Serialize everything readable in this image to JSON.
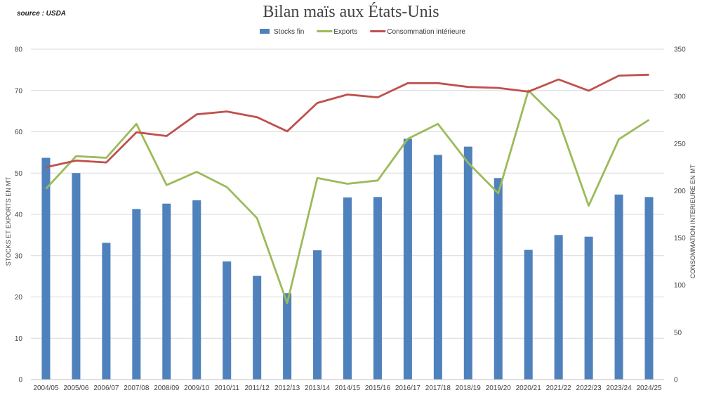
{
  "source_label": "source : USDA",
  "chart_data": {
    "type": "bar",
    "title": "Bilan maïs aux États-Unis",
    "ylabel_left": "STOCKS ET EXPORTS EN MT",
    "ylabel_right": "CONSOMMATION INTERIEURE EN MT",
    "ylim_left": [
      0,
      80
    ],
    "ylim_right": [
      0,
      350
    ],
    "yticks_left": [
      0,
      10,
      20,
      30,
      40,
      50,
      60,
      70,
      80
    ],
    "yticks_right": [
      0,
      50,
      100,
      150,
      200,
      250,
      300,
      350
    ],
    "grid": true,
    "legend_position": "top-center",
    "categories": [
      "2004/05",
      "2005/06",
      "2006/07",
      "2007/08",
      "2008/09",
      "2009/10",
      "2010/11",
      "2011/12",
      "2012/13",
      "2013/14",
      "2014/15",
      "2015/16",
      "2016/17",
      "2017/18",
      "2018/19",
      "2019/20",
      "2020/21",
      "2021/22",
      "2022/23",
      "2023/24",
      "2024/25"
    ],
    "series": [
      {
        "name": "Stocks fin",
        "type": "bar",
        "axis": "left",
        "color": "#4f81bd",
        "values": [
          53.7,
          50.0,
          33.1,
          41.3,
          42.6,
          43.4,
          28.6,
          25.1,
          20.9,
          31.3,
          44.1,
          44.2,
          58.3,
          54.4,
          56.4,
          48.8,
          31.4,
          35.0,
          34.6,
          44.8,
          44.2
        ]
      },
      {
        "name": "Exports",
        "type": "line",
        "axis": "left",
        "color": "#9bbb59",
        "values": [
          46.2,
          54.1,
          53.7,
          61.9,
          47.1,
          50.3,
          46.6,
          39.1,
          18.5,
          48.8,
          47.4,
          48.2,
          58.3,
          61.9,
          52.5,
          45.1,
          70.0,
          62.8,
          42.1,
          58.2,
          62.9
        ]
      },
      {
        "name": "Consommation intérieure",
        "type": "line",
        "axis": "right",
        "color": "#c0504d",
        "values": [
          225,
          232,
          230,
          262,
          258,
          281,
          284,
          278,
          263,
          293,
          302,
          299,
          314,
          314,
          310,
          309,
          305,
          318,
          306,
          322,
          323
        ]
      }
    ]
  }
}
